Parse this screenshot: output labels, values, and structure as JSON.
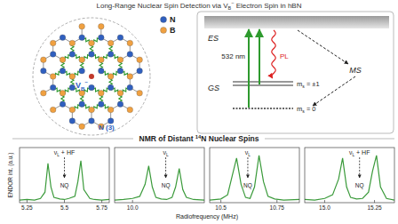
{
  "header": {
    "title": {
      "before": "Long-Range Nuclear Spin Detection via ",
      "main": "V",
      "sub": "B",
      "sup": "−",
      "after": " Electron Spin in hBN"
    }
  },
  "lattice": {
    "legend": [
      {
        "label": "N",
        "color": "#2f5fbf"
      },
      {
        "label": "B",
        "color": "#f0a040"
      }
    ],
    "vacancy": {
      "main": "V",
      "sub": "B",
      "sup": "−"
    },
    "site_label": "N (3)"
  },
  "energy_diagram": {
    "excited": "ES",
    "ground": "GS",
    "levels": [
      {
        "main": "m",
        "sub": "s",
        "after": " = ±1"
      },
      {
        "main": "m",
        "sub": "s",
        "after": " = 0"
      }
    ],
    "laser": "532 nm",
    "emission": "PL",
    "metastable": "MS"
  },
  "section_title": {
    "before": "NMR of Distant ",
    "sup": "14",
    "after": "N Nuclear Spins"
  },
  "spectra_axes": {
    "xlabel": "Radiofrequency (MHz)",
    "ylabel": "ENDOR int. (a.u.)"
  },
  "chart_data": [
    {
      "type": "line",
      "xlim": [
        5.2,
        5.8
      ],
      "xticks": [
        5.25,
        5.5,
        5.75
      ],
      "ylim": [
        0,
        1.05
      ],
      "tick_labels": "x",
      "series": [
        {
          "color": "#3a9a3a",
          "x": [
            5.2,
            5.25,
            5.3,
            5.34,
            5.37,
            5.39,
            5.41,
            5.43,
            5.47,
            5.5,
            5.53,
            5.57,
            5.59,
            5.61,
            5.63,
            5.67,
            5.7,
            5.75,
            5.8
          ],
          "values": [
            0.05,
            0.06,
            0.05,
            0.08,
            0.2,
            0.75,
            0.3,
            0.1,
            0.07,
            0.06,
            0.08,
            0.12,
            0.4,
            0.8,
            0.25,
            0.08,
            0.06,
            0.05,
            0.06
          ]
        }
      ],
      "annotations": [
        {
          "x": 5.5,
          "main": "ν",
          "sub": "L",
          "after": " + HF"
        },
        {
          "x": 5.5,
          "before": "NQ"
        }
      ]
    },
    {
      "type": "line",
      "xlim": [
        9.9,
        10.4
      ],
      "xticks": [
        {
          "value": 10,
          "label": "10.0"
        }
      ],
      "ylim": [
        0,
        1.05
      ],
      "tick_labels": "x",
      "series": [
        {
          "color": "#3a9a3a",
          "x": [
            9.9,
            9.95,
            10.0,
            10.04,
            10.07,
            10.09,
            10.11,
            10.13,
            10.16,
            10.19,
            10.22,
            10.24,
            10.26,
            10.28,
            10.3,
            10.34,
            10.4
          ],
          "values": [
            0.05,
            0.06,
            0.08,
            0.12,
            0.35,
            0.7,
            0.3,
            0.1,
            0.07,
            0.06,
            0.1,
            0.3,
            0.65,
            0.25,
            0.1,
            0.06,
            0.05
          ]
        }
      ],
      "annotations": [
        {
          "x": 10.185,
          "main": "ν",
          "sub": "L"
        },
        {
          "x": 10.185,
          "before": "NQ"
        }
      ]
    },
    {
      "type": "line",
      "xlim": [
        10.45,
        10.85
      ],
      "xticks": [
        10.5,
        10.75
      ],
      "ylim": [
        0,
        1.05
      ],
      "tick_labels": "x",
      "series": [
        {
          "color": "#3a9a3a",
          "x": [
            10.45,
            10.5,
            10.53,
            10.55,
            10.57,
            10.59,
            10.61,
            10.63,
            10.65,
            10.67,
            10.69,
            10.71,
            10.74,
            10.78,
            10.85
          ],
          "values": [
            0.05,
            0.07,
            0.15,
            0.5,
            0.85,
            0.35,
            0.1,
            0.08,
            0.3,
            0.9,
            0.4,
            0.12,
            0.07,
            0.05,
            0.06
          ]
        }
      ],
      "annotations": [
        {
          "x": 10.62,
          "main": "ν",
          "sub": "L"
        },
        {
          "x": 10.62,
          "before": "NQ"
        }
      ]
    },
    {
      "type": "line",
      "xlim": [
        14.9,
        15.35
      ],
      "xticks": [
        {
          "value": 15,
          "label": "15.0"
        },
        15.25
      ],
      "ylim": [
        0,
        1.05
      ],
      "tick_labels": "x",
      "series": [
        {
          "color": "#3a9a3a",
          "x": [
            14.9,
            14.95,
            15.0,
            15.04,
            15.07,
            15.09,
            15.11,
            15.13,
            15.16,
            15.19,
            15.22,
            15.24,
            15.26,
            15.28,
            15.31,
            15.35
          ],
          "values": [
            0.06,
            0.05,
            0.08,
            0.15,
            0.45,
            0.85,
            0.3,
            0.1,
            0.07,
            0.08,
            0.2,
            0.6,
            0.9,
            0.3,
            0.08,
            0.05
          ]
        }
      ],
      "annotations": [
        {
          "x": 15.175,
          "main": "ν",
          "sub": "L",
          "after": " + HF"
        },
        {
          "x": 15.175,
          "before": "NQ"
        }
      ]
    }
  ]
}
